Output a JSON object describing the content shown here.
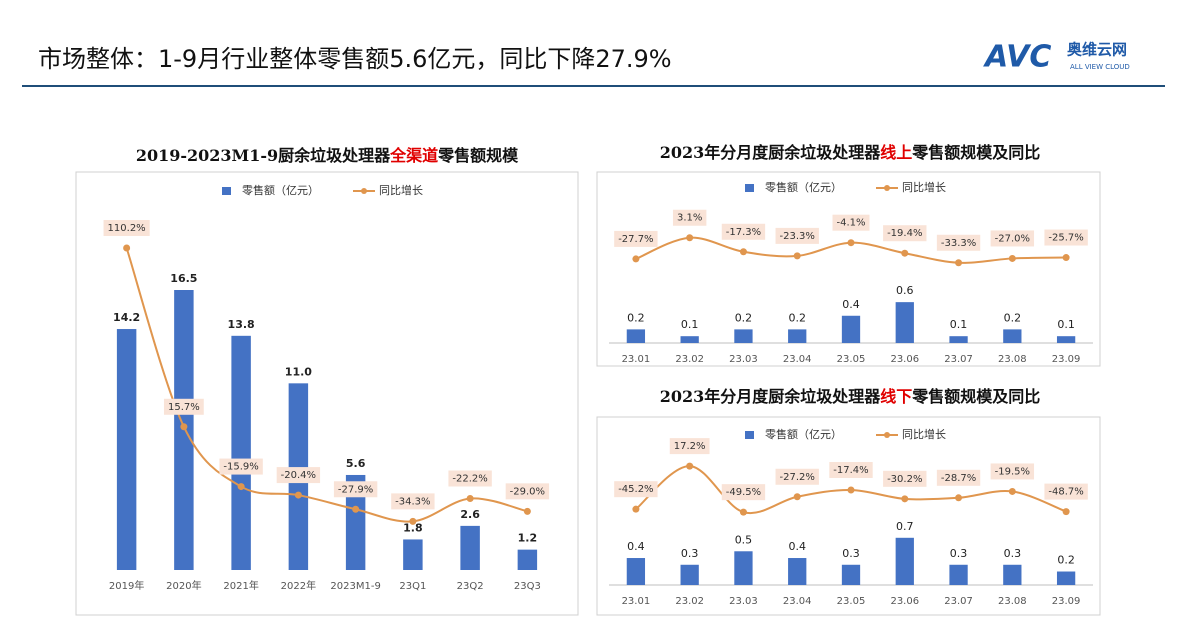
{
  "header": {
    "title": "市场整体：1-9月行业整体零售额5.6亿元，同比下降27.9%",
    "logo": "AVC",
    "logo_cn": "奥维云网",
    "logo_en": "ALL VIEW CLOUD"
  },
  "chart_data": [
    {
      "type": "combo",
      "title": [
        {
          "text": "2019-2023M1-9厨余垃圾处理器",
          "color": "#111111"
        },
        {
          "text": "全渠道",
          "color": "#e00000"
        },
        {
          "text": "零售额规模",
          "color": "#111111"
        }
      ],
      "categories": [
        "2019年",
        "2020年",
        "2021年",
        "2022年",
        "2023M1-9",
        "23Q1",
        "23Q2",
        "23Q3"
      ],
      "ylim": [
        0,
        16.5
      ],
      "y2lim": [
        -60,
        88
      ],
      "series": [
        {
          "name": "零售额（亿元）",
          "type": "bar",
          "color": "#4472c4",
          "values": [
            14.2,
            16.5,
            13.8,
            11.0,
            5.6,
            1.8,
            2.6,
            1.2
          ],
          "value_labels": [
            "14.2",
            "16.5",
            "13.8",
            "11.0",
            "5.6",
            "1.8",
            "2.6",
            "1.2"
          ]
        },
        {
          "name": "同比增长",
          "type": "line",
          "axis": "y2",
          "color": "#e0964e",
          "values": [
            110.2,
            15.7,
            -15.9,
            -20.4,
            -27.9,
            -34.3,
            -22.2,
            -29.0
          ],
          "value_labels": [
            "110.2%",
            "15.7%",
            "-15.9%",
            "-20.4%",
            "-27.9%",
            "-34.3%",
            "-22.2%",
            "-29.0%"
          ]
        }
      ]
    },
    {
      "type": "combo",
      "title": [
        {
          "text": "2023年分月度厨余垃圾处理器",
          "color": "#111111"
        },
        {
          "text": "线上",
          "color": "#e00000"
        },
        {
          "text": "零售额规模及同比",
          "color": "#111111"
        }
      ],
      "categories": [
        "23.01",
        "23.02",
        "23.03",
        "23.04",
        "23.05",
        "23.06",
        "23.07",
        "23.08",
        "23.09"
      ],
      "ylim": [
        0,
        2.1
      ],
      "y2lim": [
        -150,
        58
      ],
      "series": [
        {
          "name": "零售额（亿元）",
          "type": "bar",
          "color": "#4472c4",
          "values": [
            0.2,
            0.1,
            0.2,
            0.2,
            0.4,
            0.6,
            0.1,
            0.2,
            0.1
          ]
        },
        {
          "name": "同比增长",
          "type": "line",
          "axis": "y2",
          "color": "#e0964e",
          "values": [
            -27.7,
            3.1,
            -17.3,
            -23.3,
            -4.1,
            -19.4,
            -33.3,
            -27.0,
            -25.7
          ],
          "value_labels": [
            "-27.7%",
            "3.1%",
            "-17.3%",
            "-23.3%",
            "-4.1%",
            "-19.4%",
            "-33.3%",
            "-27.0%",
            "-25.7%"
          ]
        }
      ]
    },
    {
      "type": "combo",
      "title": [
        {
          "text": "2023年分月度厨余垃圾处理器",
          "color": "#111111"
        },
        {
          "text": "线下",
          "color": "#e00000"
        },
        {
          "text": "零售额规模及同比",
          "color": "#111111"
        }
      ],
      "categories": [
        "23.01",
        "23.02",
        "23.03",
        "23.04",
        "23.05",
        "23.06",
        "23.07",
        "23.08",
        "23.09"
      ],
      "ylim": [
        0,
        2.15
      ],
      "y2lim": [
        -155,
        55
      ],
      "series": [
        {
          "name": "零售额（亿元）",
          "type": "bar",
          "color": "#4472c4",
          "values": [
            0.4,
            0.3,
            0.5,
            0.4,
            0.3,
            0.7,
            0.3,
            0.3,
            0.2
          ]
        },
        {
          "name": "同比增长",
          "type": "line",
          "axis": "y2",
          "color": "#e0964e",
          "values": [
            -45.2,
            17.2,
            -49.5,
            -27.2,
            -17.4,
            -30.2,
            -28.7,
            -19.5,
            -48.7
          ],
          "value_labels": [
            "-45.2%",
            "17.2%",
            "-49.5%",
            "-27.2%",
            "-17.4%",
            "-30.2%",
            "-28.7%",
            "-19.5%",
            "-48.7%"
          ]
        }
      ]
    }
  ]
}
